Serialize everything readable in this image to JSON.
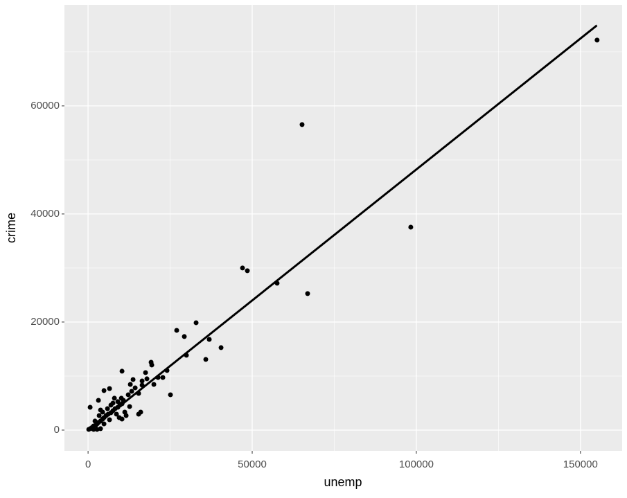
{
  "chart_data": {
    "type": "scatter",
    "x_label": "unemp",
    "y_label": "crime",
    "xlim": [
      -7200,
      162700
    ],
    "ylim": [
      -3850,
      78700
    ],
    "xticks": [
      0,
      50000,
      100000,
      150000
    ],
    "yticks": [
      0,
      20000,
      40000,
      60000
    ],
    "x_minor_grid": [
      25000,
      75000,
      125000
    ],
    "y_minor_grid": [
      10000,
      30000,
      50000,
      70000
    ],
    "grid": true,
    "color": "#000000",
    "fit_line": {
      "x": [
        500,
        155000
      ],
      "y": [
        0,
        74900
      ],
      "color": "#000000"
    },
    "x": [
      155063,
      65190,
      98310,
      47050,
      48520,
      57590,
      66880,
      32910,
      27000,
      29320,
      36920,
      40510,
      29960,
      35860,
      25100,
      24050,
      22780,
      19200,
      19410,
      10340,
      17510,
      16460,
      15400,
      12660,
      15400,
      16030,
      11180,
      7590,
      4850,
      6540,
      630,
      3160,
      9070,
      10130,
      12240,
      13290,
      14350,
      16460,
      17930,
      20040,
      12870,
      13710,
      21310,
      210,
      630,
      1270,
      1690,
      2320,
      2740,
      3160,
      3800,
      4430,
      4850,
      5490,
      6120,
      6960,
      7590,
      8230,
      9070,
      9700,
      10340,
      10760,
      1690,
      2740,
      3800,
      2110,
      3380,
      4430,
      5910,
      6960,
      8650,
      9490,
      6540,
      4850,
      8020,
      11600,
      10340,
      3800
    ],
    "y": [
      72180,
      56540,
      37560,
      30000,
      29490,
      27180,
      25260,
      19870,
      18460,
      17310,
      16790,
      15260,
      13850,
      13080,
      6540,
      11030,
      9740,
      12560,
      12050,
      10900,
      10640,
      8330,
      6790,
      4360,
      2950,
      3330,
      3330,
      5000,
      7310,
      7690,
      4230,
      5510,
      5260,
      5900,
      6540,
      7180,
      7820,
      9100,
      9490,
      8460,
      8460,
      9360,
      9740,
      130,
      260,
      510,
      770,
      900,
      1150,
      1410,
      1670,
      2050,
      2310,
      2690,
      2950,
      3210,
      3590,
      3970,
      4230,
      4620,
      4870,
      5510,
      130,
      130,
      260,
      1670,
      2690,
      3330,
      3970,
      4620,
      2950,
      2310,
      1920,
      1150,
      5900,
      2690,
      2050,
      3720
    ]
  }
}
